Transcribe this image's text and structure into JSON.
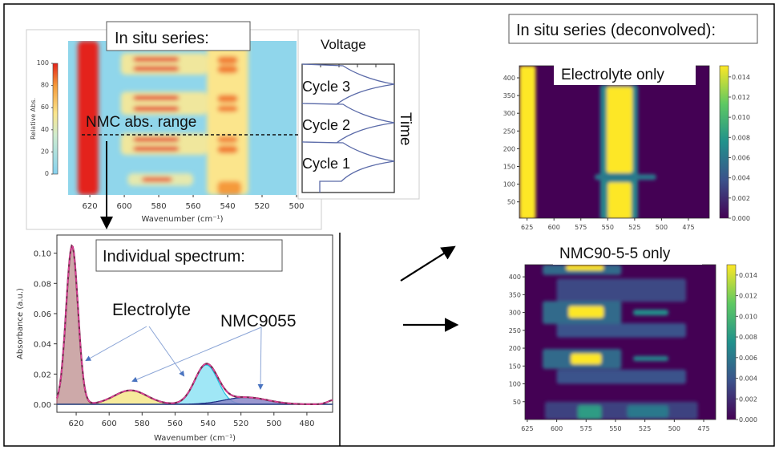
{
  "labels": {
    "insitu_title": "In situ series:",
    "nmc_range_label": "NMC abs. range",
    "voltage_label": "Voltage",
    "time_label": "Time",
    "cycles": [
      "Cycle 3",
      "Cycle 2",
      "Cycle 1"
    ],
    "spectrum_title": "Individual spectrum:",
    "electrolyte_label": "Electrolyte",
    "nmc9055_label": "NMC9055",
    "deconvolved_title": "In situ series (deconvolved):",
    "electrolyte_only_title": "Electrolyte only",
    "nmc_only_title": "NMC90-5-5 only"
  },
  "colors": {
    "frame": "#000000",
    "voltage_curve": "#5a6aa8",
    "annotation_arrow": "#8aa4d6",
    "total_fit": "#e0409a"
  },
  "chart_data": [
    {
      "id": "insitu",
      "type": "heatmap",
      "title": "",
      "xlabel": "Wavenumber (cm⁻¹)",
      "xticks": [
        620,
        600,
        580,
        560,
        540,
        520,
        500
      ],
      "xlim": [
        632.6,
        500
      ],
      "ylim": [
        0,
        1
      ],
      "colormap": "jet-like",
      "colorbar": {
        "label": "Relative Abs.",
        "ticks": [
          0,
          20,
          40,
          60,
          80,
          100
        ],
        "range": [
          0,
          100
        ]
      },
      "bands": [
        {
          "wn": [
            552,
            528
          ],
          "y": [
            0,
            1
          ],
          "level": 0.55
        },
        {
          "wn": [
            602,
            552
          ],
          "y": [
            0.78,
            0.92
          ],
          "level": 0.5
        },
        {
          "wn": [
            602,
            552
          ],
          "y": [
            0.52,
            0.67
          ],
          "level": 0.5
        },
        {
          "wn": [
            602,
            552
          ],
          "y": [
            0.26,
            0.4
          ],
          "level": 0.5
        },
        {
          "wn": [
            598,
            560
          ],
          "y": [
            0.06,
            0.14
          ],
          "level": 0.45
        },
        {
          "wn": [
            595,
            568
          ],
          "y": [
            0.865,
            0.895
          ],
          "level": 1
        },
        {
          "wn": [
            595,
            568
          ],
          "y": [
            0.805,
            0.835
          ],
          "level": 1
        },
        {
          "wn": [
            595,
            568
          ],
          "y": [
            0.615,
            0.645
          ],
          "level": 1
        },
        {
          "wn": [
            595,
            568
          ],
          "y": [
            0.545,
            0.575
          ],
          "level": 1
        },
        {
          "wn": [
            595,
            568
          ],
          "y": [
            0.345,
            0.375
          ],
          "level": 1
        },
        {
          "wn": [
            595,
            568
          ],
          "y": [
            0.285,
            0.315
          ],
          "level": 1
        },
        {
          "wn": [
            590,
            572
          ],
          "y": [
            0.085,
            0.115
          ],
          "level": 0.95
        },
        {
          "wn": [
            546,
            534
          ],
          "y": [
            0.85,
            0.9
          ],
          "level": 0.85
        },
        {
          "wn": [
            546,
            534
          ],
          "y": [
            0.79,
            0.84
          ],
          "level": 0.85
        },
        {
          "wn": [
            546,
            534
          ],
          "y": [
            0.6,
            0.65
          ],
          "level": 0.85
        },
        {
          "wn": [
            546,
            534
          ],
          "y": [
            0.54,
            0.58
          ],
          "level": 0.85
        },
        {
          "wn": [
            546,
            534
          ],
          "y": [
            0.34,
            0.38
          ],
          "level": 0.85
        },
        {
          "wn": [
            546,
            534
          ],
          "y": [
            0.27,
            0.32
          ],
          "level": 0.85
        },
        {
          "wn": [
            546,
            532
          ],
          "y": [
            0.0,
            0.09
          ],
          "level": 0.8
        },
        {
          "wn": [
            627,
            615
          ],
          "y": [
            0,
            1
          ],
          "level": 1
        }
      ]
    },
    {
      "id": "spectrum",
      "type": "area",
      "title": "",
      "xlabel": "Wavenumber (cm⁻¹)",
      "ylabel": "Absorbance (a.u.)",
      "xticks": [
        620,
        600,
        580,
        560,
        540,
        520,
        500,
        480
      ],
      "yticks": [
        "0.00",
        "0.02",
        "0.04",
        "0.06",
        "0.08",
        "0.10"
      ],
      "xlim": [
        631.7,
        464.4
      ],
      "ylim": [
        -0.0053,
        0.112
      ],
      "components": [
        {
          "center": 622.5,
          "height": 0.105,
          "sigma": 3.6,
          "fill": "#c49a9a",
          "edge": "#a05a6a"
        },
        {
          "center": 587,
          "height": 0.0092,
          "sigma": 10,
          "fill": "#f5e68a",
          "edge": "#e0c040"
        },
        {
          "center": 541,
          "height": 0.026,
          "sigma": 7,
          "fill": "#8fe3f5",
          "edge": "#20c0e0"
        },
        {
          "center": 517,
          "height": 0.0046,
          "sigma": 13,
          "fill": "#8a86c8",
          "edge": "#1a2a80"
        }
      ],
      "total_fit": {
        "style": "dashed",
        "extra": [
          {
            "center": 463,
            "height": 0.003,
            "sigma": 4
          }
        ]
      }
    },
    {
      "id": "electrolyte-only",
      "type": "heatmap",
      "title": "Electrolyte only",
      "xticks": [
        625,
        600,
        575,
        550,
        525,
        500,
        475
      ],
      "yticks": [
        50,
        100,
        150,
        200,
        250,
        300,
        350,
        400
      ],
      "xlim": [
        632.2,
        455.6
      ],
      "ylim": [
        4,
        434
      ],
      "colormap": "viridis",
      "colorbar": {
        "ticks": [
          "0.000",
          "0.002",
          "0.004",
          "0.006",
          "0.008",
          "0.010",
          "0.012",
          "0.014"
        ],
        "range": [
          0,
          0.0151
        ]
      },
      "bands": [
        {
          "wn": [
            632,
            617
          ],
          "y": [
            0,
            434
          ],
          "level": 1
        },
        {
          "wn": [
            557,
            522
          ],
          "y": [
            0,
            380
          ],
          "level": 0.45
        },
        {
          "wn": [
            550,
            528
          ],
          "y": [
            0,
            105
          ],
          "level": 1
        },
        {
          "wn": [
            551,
            527
          ],
          "y": [
            132,
            375
          ],
          "level": 1
        },
        {
          "wn": [
            562,
            505
          ],
          "y": [
            112,
            128
          ],
          "level": 0.4
        }
      ]
    },
    {
      "id": "nmc-only",
      "type": "heatmap",
      "title": "NMC90-5-5 only",
      "xticks": [
        625,
        600,
        575,
        550,
        525,
        500,
        475
      ],
      "yticks": [
        50,
        100,
        150,
        200,
        250,
        300,
        350,
        400
      ],
      "xlim": [
        627,
        464.8
      ],
      "ylim": [
        0,
        434
      ],
      "colormap": "viridis",
      "colorbar": {
        "ticks": [
          "0.000",
          "0.002",
          "0.004",
          "0.006",
          "0.008",
          "0.010",
          "0.012",
          "0.014"
        ],
        "range": [
          0,
          0.015
        ]
      },
      "bands": [
        {
          "wn": [
            610,
            480
          ],
          "y": [
            0,
            50
          ],
          "level": 0.2
        },
        {
          "wn": [
            600,
            490
          ],
          "y": [
            230,
            270
          ],
          "level": 0.25
        },
        {
          "wn": [
            600,
            490
          ],
          "y": [
            100,
            140
          ],
          "level": 0.25
        },
        {
          "wn": [
            600,
            490
          ],
          "y": [
            330,
            395
          ],
          "level": 0.22
        },
        {
          "wn": [
            612,
            545
          ],
          "y": [
            268,
            332
          ],
          "level": 0.35
        },
        {
          "wn": [
            612,
            545
          ],
          "y": [
            142,
            198
          ],
          "level": 0.35
        },
        {
          "wn": [
            612,
            545
          ],
          "y": [
            405,
            434
          ],
          "level": 0.35
        },
        {
          "wn": [
            590,
            560
          ],
          "y": [
            285,
            318
          ],
          "level": 1
        },
        {
          "wn": [
            588,
            562
          ],
          "y": [
            155,
            185
          ],
          "level": 1
        },
        {
          "wn": [
            592,
            560
          ],
          "y": [
            418,
            434
          ],
          "level": 1
        },
        {
          "wn": [
            535,
            505
          ],
          "y": [
            292,
            308
          ],
          "level": 0.5
        },
        {
          "wn": [
            535,
            505
          ],
          "y": [
            164,
            178
          ],
          "level": 0.45
        },
        {
          "wn": [
            582,
            562
          ],
          "y": [
            0,
            40
          ],
          "level": 0.55
        },
        {
          "wn": [
            540,
            505
          ],
          "y": [
            5,
            40
          ],
          "level": 0.4
        }
      ]
    }
  ]
}
